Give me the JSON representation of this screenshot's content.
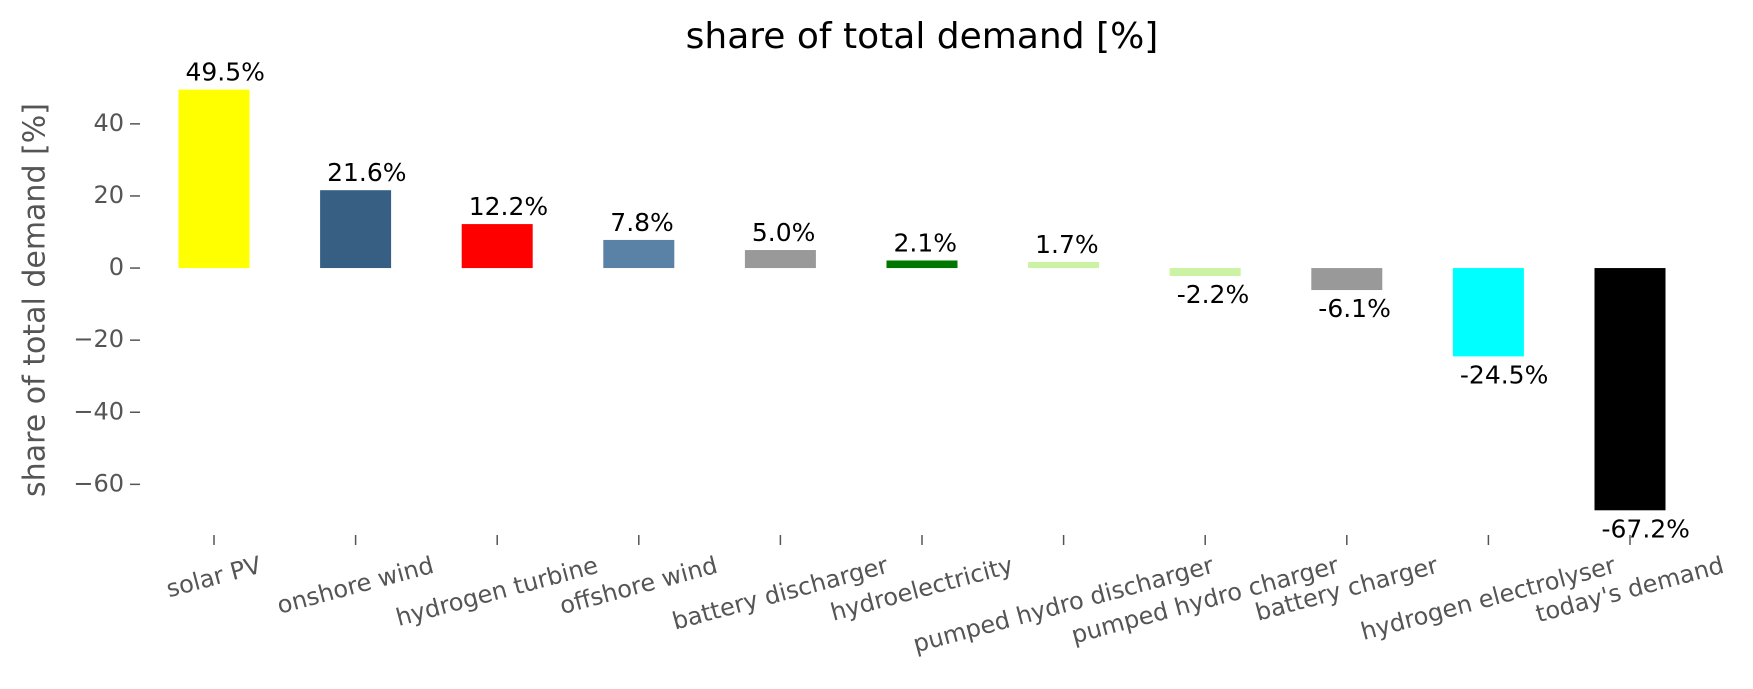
{
  "chart_data": {
    "type": "bar",
    "title": "share of total demand [%]",
    "ylabel": "share of total demand [%]",
    "categories": [
      "solar PV",
      "onshore wind",
      "hydrogen turbine",
      "offshore wind",
      "battery discharger",
      "hydroelectricity",
      "pumped hydro discharger",
      "pumped hydro charger",
      "battery charger",
      "hydrogen electrolyser",
      "today's demand"
    ],
    "values": [
      49.5,
      21.6,
      12.2,
      7.8,
      5.0,
      2.1,
      1.7,
      -2.2,
      -6.1,
      -24.5,
      -67.2
    ],
    "value_labels": [
      "49.5%",
      "21.6%",
      "12.2%",
      "7.8%",
      "5.0%",
      "2.1%",
      "1.7%",
      "-2.2%",
      "-6.1%",
      "-24.5%",
      "-67.2%"
    ],
    "colors": [
      "#ffff00",
      "#375f83",
      "#ff0000",
      "#5a82a6",
      "#999999",
      "#007700",
      "#ccf2a4",
      "#ccf2a4",
      "#999999",
      "#00ffff",
      "#000000"
    ],
    "ylim": [
      -71,
      53
    ],
    "yticks": [
      {
        "value": -60,
        "label": "−60"
      },
      {
        "value": -40,
        "label": "−40"
      },
      {
        "value": -20,
        "label": "−20"
      },
      0,
      20,
      40
    ],
    "grid": false
  }
}
